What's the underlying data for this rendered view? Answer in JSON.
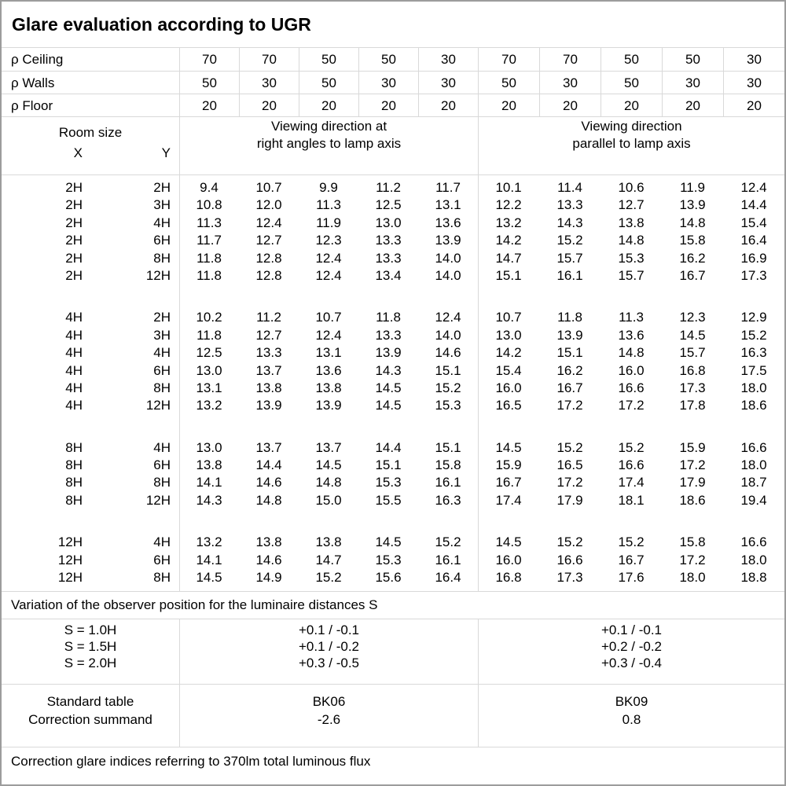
{
  "title": "Glare evaluation according to UGR",
  "colors": {
    "background": "#ffffff",
    "text": "#000000",
    "grid_line": "#d9d9d9",
    "outer_border": "#9c9c9c"
  },
  "reflectance_rows": [
    {
      "label": "ρ Ceiling",
      "values": [
        "70",
        "70",
        "50",
        "50",
        "30",
        "70",
        "70",
        "50",
        "50",
        "30"
      ]
    },
    {
      "label": "ρ Walls",
      "values": [
        "50",
        "30",
        "50",
        "30",
        "30",
        "50",
        "30",
        "50",
        "30",
        "30"
      ]
    },
    {
      "label": "ρ Floor",
      "values": [
        "20",
        "20",
        "20",
        "20",
        "20",
        "20",
        "20",
        "20",
        "20",
        "20"
      ]
    }
  ],
  "headers": {
    "room_size": "Room size",
    "x": "X",
    "y": "Y",
    "right_angles_line1": "Viewing direction at",
    "right_angles_line2": "right angles to lamp axis",
    "parallel_line1": "Viewing direction",
    "parallel_line2": "parallel to lamp axis"
  },
  "groups": [
    {
      "rows": [
        {
          "x": "2H",
          "y": "2H",
          "values": [
            "9.4",
            "10.7",
            "9.9",
            "11.2",
            "11.7",
            "10.1",
            "11.4",
            "10.6",
            "11.9",
            "12.4"
          ]
        },
        {
          "x": "2H",
          "y": "3H",
          "values": [
            "10.8",
            "12.0",
            "11.3",
            "12.5",
            "13.1",
            "12.2",
            "13.3",
            "12.7",
            "13.9",
            "14.4"
          ]
        },
        {
          "x": "2H",
          "y": "4H",
          "values": [
            "11.3",
            "12.4",
            "11.9",
            "13.0",
            "13.6",
            "13.2",
            "14.3",
            "13.8",
            "14.8",
            "15.4"
          ]
        },
        {
          "x": "2H",
          "y": "6H",
          "values": [
            "11.7",
            "12.7",
            "12.3",
            "13.3",
            "13.9",
            "14.2",
            "15.2",
            "14.8",
            "15.8",
            "16.4"
          ]
        },
        {
          "x": "2H",
          "y": "8H",
          "values": [
            "11.8",
            "12.8",
            "12.4",
            "13.3",
            "14.0",
            "14.7",
            "15.7",
            "15.3",
            "16.2",
            "16.9"
          ]
        },
        {
          "x": "2H",
          "y": "12H",
          "values": [
            "11.8",
            "12.8",
            "12.4",
            "13.4",
            "14.0",
            "15.1",
            "16.1",
            "15.7",
            "16.7",
            "17.3"
          ]
        }
      ]
    },
    {
      "rows": [
        {
          "x": "4H",
          "y": "2H",
          "values": [
            "10.2",
            "11.2",
            "10.7",
            "11.8",
            "12.4",
            "10.7",
            "11.8",
            "11.3",
            "12.3",
            "12.9"
          ]
        },
        {
          "x": "4H",
          "y": "3H",
          "values": [
            "11.8",
            "12.7",
            "12.4",
            "13.3",
            "14.0",
            "13.0",
            "13.9",
            "13.6",
            "14.5",
            "15.2"
          ]
        },
        {
          "x": "4H",
          "y": "4H",
          "values": [
            "12.5",
            "13.3",
            "13.1",
            "13.9",
            "14.6",
            "14.2",
            "15.1",
            "14.8",
            "15.7",
            "16.3"
          ]
        },
        {
          "x": "4H",
          "y": "6H",
          "values": [
            "13.0",
            "13.7",
            "13.6",
            "14.3",
            "15.1",
            "15.4",
            "16.2",
            "16.0",
            "16.8",
            "17.5"
          ]
        },
        {
          "x": "4H",
          "y": "8H",
          "values": [
            "13.1",
            "13.8",
            "13.8",
            "14.5",
            "15.2",
            "16.0",
            "16.7",
            "16.6",
            "17.3",
            "18.0"
          ]
        },
        {
          "x": "4H",
          "y": "12H",
          "values": [
            "13.2",
            "13.9",
            "13.9",
            "14.5",
            "15.3",
            "16.5",
            "17.2",
            "17.2",
            "17.8",
            "18.6"
          ]
        }
      ]
    },
    {
      "rows": [
        {
          "x": "8H",
          "y": "4H",
          "values": [
            "13.0",
            "13.7",
            "13.7",
            "14.4",
            "15.1",
            "14.5",
            "15.2",
            "15.2",
            "15.9",
            "16.6"
          ]
        },
        {
          "x": "8H",
          "y": "6H",
          "values": [
            "13.8",
            "14.4",
            "14.5",
            "15.1",
            "15.8",
            "15.9",
            "16.5",
            "16.6",
            "17.2",
            "18.0"
          ]
        },
        {
          "x": "8H",
          "y": "8H",
          "values": [
            "14.1",
            "14.6",
            "14.8",
            "15.3",
            "16.1",
            "16.7",
            "17.2",
            "17.4",
            "17.9",
            "18.7"
          ]
        },
        {
          "x": "8H",
          "y": "12H",
          "values": [
            "14.3",
            "14.8",
            "15.0",
            "15.5",
            "16.3",
            "17.4",
            "17.9",
            "18.1",
            "18.6",
            "19.4"
          ]
        }
      ]
    },
    {
      "rows": [
        {
          "x": "12H",
          "y": "4H",
          "values": [
            "13.2",
            "13.8",
            "13.8",
            "14.5",
            "15.2",
            "14.5",
            "15.2",
            "15.2",
            "15.8",
            "16.6"
          ]
        },
        {
          "x": "12H",
          "y": "6H",
          "values": [
            "14.1",
            "14.6",
            "14.7",
            "15.3",
            "16.1",
            "16.0",
            "16.6",
            "16.7",
            "17.2",
            "18.0"
          ]
        },
        {
          "x": "12H",
          "y": "8H",
          "values": [
            "14.5",
            "14.9",
            "15.2",
            "15.6",
            "16.4",
            "16.8",
            "17.3",
            "17.6",
            "18.0",
            "18.8"
          ]
        }
      ]
    }
  ],
  "variation": {
    "label": "Variation of the observer position for the luminaire distances S",
    "rows": [
      {
        "s": "S = 1.0H",
        "right_angles": "+0.1 / -0.1",
        "parallel": "+0.1 / -0.1"
      },
      {
        "s": "S = 1.5H",
        "right_angles": "+0.1 / -0.2",
        "parallel": "+0.2 / -0.2"
      },
      {
        "s": "S = 2.0H",
        "right_angles": "+0.3 / -0.5",
        "parallel": "+0.3 / -0.4"
      }
    ]
  },
  "standard": {
    "table_label": "Standard table",
    "summand_label": "Correction summand",
    "right_angles": {
      "table": "BK06",
      "summand": "-2.6"
    },
    "parallel": {
      "table": "BK09",
      "summand": "0.8"
    }
  },
  "footer": "Correction glare indices referring to 370lm total luminous flux"
}
